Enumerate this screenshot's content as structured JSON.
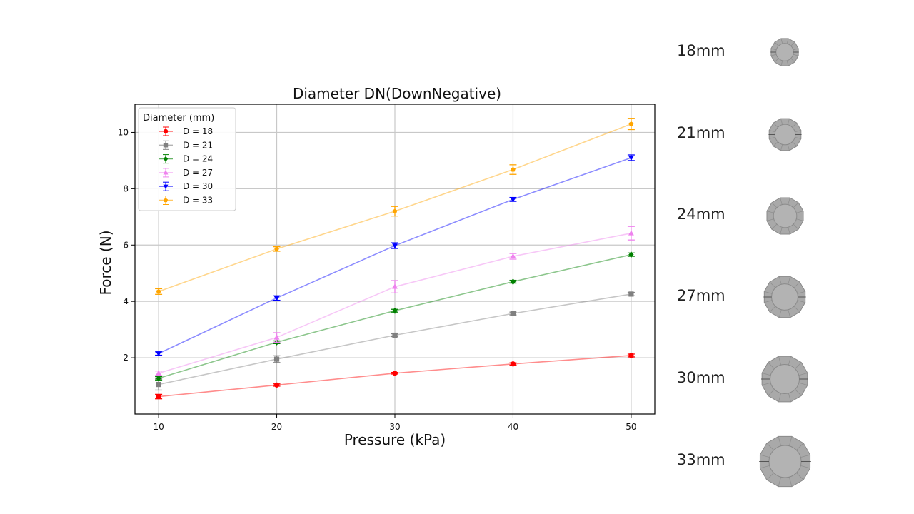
{
  "chart_data": {
    "type": "line",
    "title": "Diameter DN(DownNegative)",
    "xlabel": "Pressure (kPa)",
    "ylabel": "Force (N)",
    "x": [
      10,
      20,
      30,
      40,
      50
    ],
    "xticks": [
      "10",
      "20",
      "30",
      "40",
      "50"
    ],
    "yticks": [
      "2",
      "4",
      "6",
      "8",
      "10"
    ],
    "xlim": [
      8,
      52
    ],
    "ylim": [
      0,
      11
    ],
    "grid": true,
    "legend_title": "Diameter (mm)",
    "legend_position": "top-left",
    "series": [
      {
        "name": "D = 18",
        "color": "#ff0000",
        "marker": "circle",
        "values": [
          0.62,
          1.03,
          1.45,
          1.78,
          2.08
        ],
        "errors": [
          0.08,
          0.04,
          0.03,
          0.04,
          0.05
        ]
      },
      {
        "name": "D = 21",
        "color": "#808080",
        "marker": "square",
        "values": [
          1.05,
          1.95,
          2.8,
          3.57,
          4.26
        ],
        "errors": [
          0.2,
          0.12,
          0.05,
          0.05,
          0.06
        ]
      },
      {
        "name": "D = 24",
        "color": "#008000",
        "marker": "diamond",
        "values": [
          1.27,
          2.55,
          3.67,
          4.7,
          5.66
        ],
        "errors": [
          0.06,
          0.05,
          0.05,
          0.05,
          0.06
        ]
      },
      {
        "name": "D = 27",
        "color": "#ee82ee",
        "marker": "triangle-up",
        "values": [
          1.45,
          2.72,
          4.52,
          5.6,
          6.42
        ],
        "errors": [
          0.08,
          0.17,
          0.22,
          0.1,
          0.24
        ]
      },
      {
        "name": "D = 30",
        "color": "#0000ff",
        "marker": "triangle-down",
        "values": [
          2.15,
          4.12,
          5.98,
          7.62,
          9.1
        ],
        "errors": [
          0.06,
          0.08,
          0.1,
          0.07,
          0.1
        ]
      },
      {
        "name": "D = 33",
        "color": "#ffa500",
        "marker": "pentagon",
        "values": [
          4.35,
          5.86,
          7.2,
          8.68,
          10.3
        ],
        "errors": [
          0.1,
          0.08,
          0.17,
          0.17,
          0.2
        ]
      }
    ]
  },
  "side_panel": [
    {
      "label": "18mm",
      "diameter": 18
    },
    {
      "label": "21mm",
      "diameter": 21
    },
    {
      "label": "24mm",
      "diameter": 24
    },
    {
      "label": "27mm",
      "diameter": 27
    },
    {
      "label": "30mm",
      "diameter": 30
    },
    {
      "label": "33mm",
      "diameter": 33
    }
  ]
}
